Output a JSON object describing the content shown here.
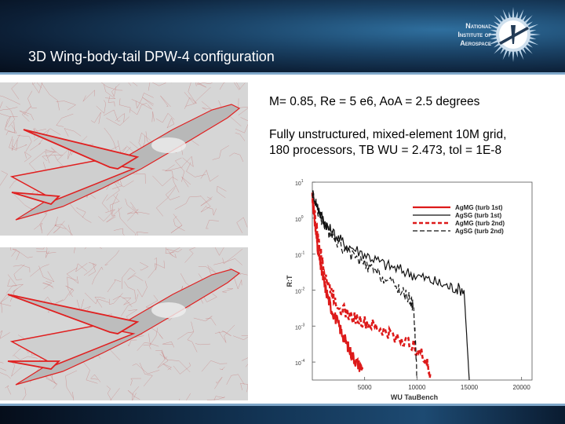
{
  "header": {
    "title": "3D Wing-body-tail DPW-4 configuration",
    "logo": {
      "lines": [
        "National",
        "Institute of",
        "Aerospace"
      ],
      "icon": "compass-sun-icon"
    }
  },
  "conditions": "M= 0.85, Re = 5 e6, AoA = 2.5 degrees",
  "grid_info": {
    "line1": "Fully unstructured, mixed-element 10M grid,",
    "line2": "180 processors, TB WU = 2.473, tol = 1E-8"
  },
  "colors": {
    "header_bg": "#0c1f36",
    "accent_line": "#7fa7c9",
    "mesh_red": "#e02020",
    "mesh_bg": "#d6d6d6"
  },
  "chart_data": {
    "type": "line",
    "xlabel": "WU TauBench",
    "ylabel": "R:T",
    "x_ticks": [
      5000,
      10000,
      15000,
      20000
    ],
    "y_ticks": [
      {
        "base": "10",
        "exp": "1"
      },
      {
        "base": "10",
        "exp": "0"
      },
      {
        "base": "10",
        "exp": "-1"
      },
      {
        "base": "10",
        "exp": "-2"
      },
      {
        "base": "10",
        "exp": "-3"
      },
      {
        "base": "10",
        "exp": "-4"
      }
    ],
    "xlim": [
      0,
      21000
    ],
    "ylog_range": [
      -4.5,
      1
    ],
    "legend_position": "top-right",
    "series": [
      {
        "name": "AgMG (turb 1st)",
        "color": "#dd1a1a",
        "dash": "solid",
        "width": 2.2,
        "points": [
          [
            0,
            0.6
          ],
          [
            300,
            -0.3
          ],
          [
            600,
            -1.0
          ],
          [
            900,
            -1.5
          ],
          [
            1300,
            -2.0
          ],
          [
            1800,
            -2.5
          ],
          [
            2400,
            -2.9
          ],
          [
            3000,
            -3.3
          ],
          [
            3600,
            -3.7
          ],
          [
            4200,
            -4.0
          ],
          [
            4800,
            -4.2
          ]
        ]
      },
      {
        "name": "AgSG (turb 1st)",
        "color": "#111111",
        "dash": "solid",
        "width": 1.2,
        "points": [
          [
            0,
            0.7
          ],
          [
            800,
            0.1
          ],
          [
            1600,
            -0.3
          ],
          [
            3000,
            -0.7
          ],
          [
            5000,
            -1.0
          ],
          [
            7000,
            -1.3
          ],
          [
            9000,
            -1.5
          ],
          [
            11000,
            -1.7
          ],
          [
            13000,
            -1.9
          ],
          [
            14500,
            -2.0
          ],
          [
            15000,
            -4.5
          ]
        ]
      },
      {
        "name": "AgMG (turb 2nd)",
        "color": "#dd1a1a",
        "dash": "5,3",
        "width": 2.6,
        "points": [
          [
            0,
            0.6
          ],
          [
            500,
            -0.5
          ],
          [
            1000,
            -1.3
          ],
          [
            1600,
            -1.9
          ],
          [
            2400,
            -2.4
          ],
          [
            3500,
            -2.7
          ],
          [
            5000,
            -2.9
          ],
          [
            6500,
            -3.1
          ],
          [
            8000,
            -3.3
          ],
          [
            9500,
            -3.5
          ],
          [
            10800,
            -3.9
          ],
          [
            11300,
            -4.4
          ]
        ]
      },
      {
        "name": "AgSG (turb 2nd)",
        "color": "#111111",
        "dash": "6,3",
        "width": 1.2,
        "points": [
          [
            0,
            0.7
          ],
          [
            800,
            0.0
          ],
          [
            1800,
            -0.5
          ],
          [
            3200,
            -0.9
          ],
          [
            5000,
            -1.3
          ],
          [
            6500,
            -1.6
          ],
          [
            8000,
            -1.9
          ],
          [
            9200,
            -2.2
          ],
          [
            9700,
            -2.5
          ],
          [
            10000,
            -4.4
          ]
        ]
      }
    ]
  }
}
